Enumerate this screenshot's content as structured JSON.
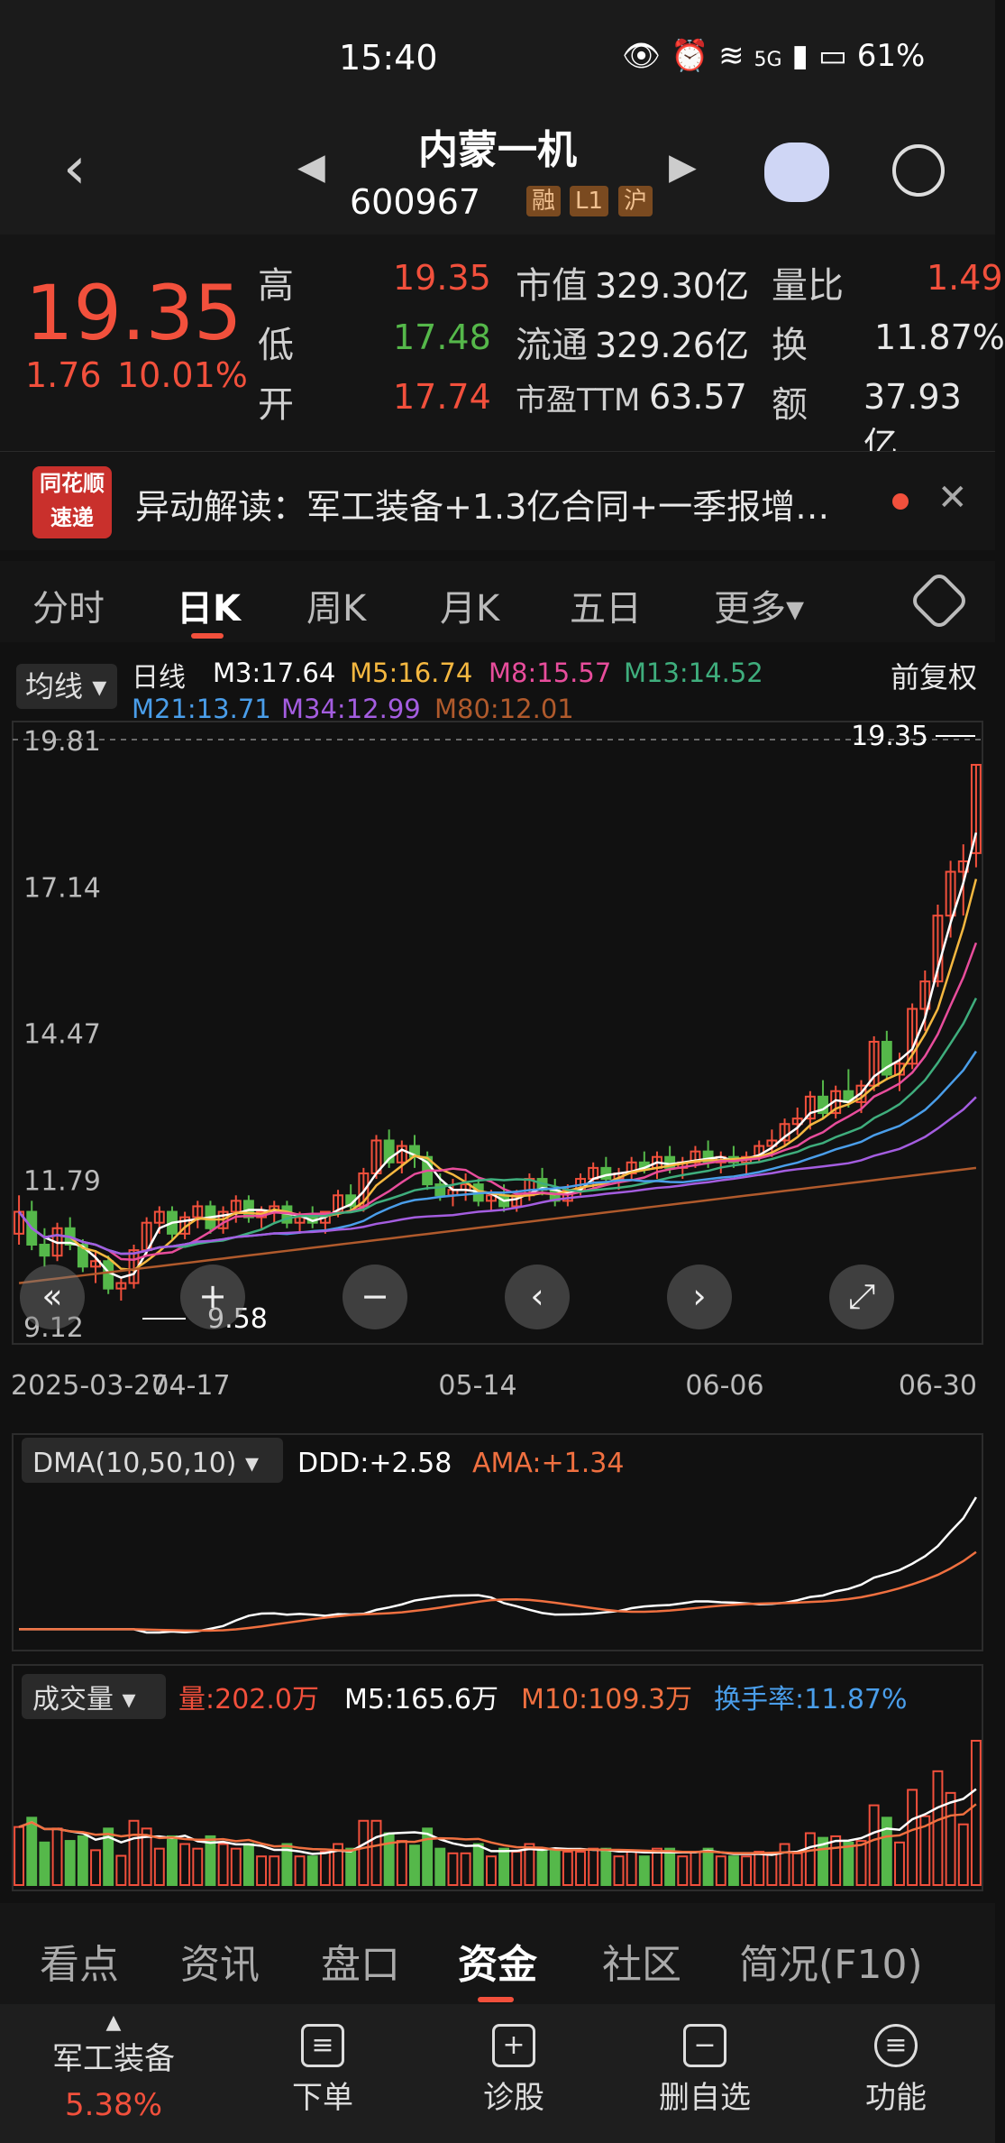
{
  "status": {
    "time": "15:40",
    "battery": "61%",
    "network": "5G"
  },
  "header": {
    "title": "内蒙一机",
    "code": "600967",
    "tags": [
      "融",
      "L1",
      "沪"
    ]
  },
  "quote": {
    "price": "19.35",
    "change": "1.76",
    "change_pct": "10.01%",
    "high_label": "高",
    "high": "19.35",
    "low_label": "低",
    "low": "17.48",
    "open_label": "开",
    "open": "17.74",
    "mktcap_label": "市值",
    "mktcap": "329.30亿",
    "float_label": "流通",
    "float": "329.26亿",
    "pe_label": "市盈TTM",
    "pe": "63.57",
    "volratio_label": "量比",
    "volratio": "1.49",
    "turnover_label": "换",
    "turnover": "11.87%",
    "amount_label": "额",
    "amount": "37.93亿"
  },
  "news": {
    "logo_line1": "同花顺",
    "logo_line2": "速递",
    "text": "异动解读：军工装备+1.3亿合同+一季报增…"
  },
  "ktabs": [
    "分时",
    "日K",
    "周K",
    "月K",
    "五日",
    "更多▾"
  ],
  "ma_panel": {
    "selector": "均线",
    "period": "日线",
    "adjust": "前复权",
    "ma": [
      {
        "label": "M3:17.64",
        "color": "#ffffff"
      },
      {
        "label": "M5:16.74",
        "color": "#f5b840"
      },
      {
        "label": "M8:15.57",
        "color": "#e84d9c"
      },
      {
        "label": "M13:14.52",
        "color": "#3fae7d"
      },
      {
        "label": "M21:13.71",
        "color": "#4a9eea"
      },
      {
        "label": "M34:12.99",
        "color": "#a45de0"
      },
      {
        "label": "M80:12.01",
        "color": "#b05a2c"
      }
    ]
  },
  "chart_data": [
    {
      "type": "candlestick",
      "title": "日线",
      "y_ticks": [
        19.81,
        17.14,
        14.47,
        11.79,
        9.12
      ],
      "ylim": [
        9.12,
        19.81
      ],
      "x_ticks": [
        "2025-03-27",
        "04-17",
        "05-14",
        "06-06",
        "06-30"
      ],
      "max_label": "19.35",
      "min_label": "9.58",
      "ohlc": [
        [
          10.8,
          11.5,
          10.6,
          11.2
        ],
        [
          11.2,
          11.4,
          10.5,
          10.6
        ],
        [
          10.6,
          10.9,
          10.2,
          10.4
        ],
        [
          10.4,
          11.0,
          10.3,
          10.9
        ],
        [
          10.9,
          11.1,
          10.5,
          10.6
        ],
        [
          10.6,
          10.7,
          10.1,
          10.2
        ],
        [
          10.2,
          10.5,
          9.9,
          10.3
        ],
        [
          10.3,
          10.4,
          9.7,
          9.8
        ],
        [
          9.8,
          10.0,
          9.58,
          9.9
        ],
        [
          9.9,
          10.6,
          9.8,
          10.5
        ],
        [
          10.5,
          11.1,
          10.4,
          11.0
        ],
        [
          11.0,
          11.3,
          10.8,
          11.2
        ],
        [
          11.2,
          11.3,
          10.7,
          10.8
        ],
        [
          10.8,
          11.2,
          10.7,
          11.1
        ],
        [
          11.1,
          11.4,
          10.9,
          11.3
        ],
        [
          11.3,
          11.4,
          10.8,
          10.9
        ],
        [
          10.9,
          11.3,
          10.8,
          11.2
        ],
        [
          11.2,
          11.5,
          11.0,
          11.4
        ],
        [
          11.4,
          11.5,
          11.0,
          11.1
        ],
        [
          11.1,
          11.3,
          10.9,
          11.2
        ],
        [
          11.2,
          11.4,
          11.0,
          11.3
        ],
        [
          11.3,
          11.4,
          10.9,
          11.0
        ],
        [
          11.0,
          11.2,
          10.8,
          11.1
        ],
        [
          11.1,
          11.3,
          10.9,
          11.0
        ],
        [
          11.0,
          11.2,
          10.8,
          11.2
        ],
        [
          11.2,
          11.6,
          11.1,
          11.5
        ],
        [
          11.5,
          11.7,
          11.2,
          11.3
        ],
        [
          11.3,
          12.0,
          11.2,
          11.9
        ],
        [
          11.9,
          12.6,
          11.8,
          12.5
        ],
        [
          12.5,
          12.7,
          12.0,
          12.1
        ],
        [
          12.1,
          12.5,
          11.9,
          12.4
        ],
        [
          12.4,
          12.6,
          12.0,
          12.2
        ],
        [
          12.2,
          12.3,
          11.6,
          11.7
        ],
        [
          11.7,
          11.9,
          11.4,
          11.5
        ],
        [
          11.5,
          11.8,
          11.3,
          11.6
        ],
        [
          11.6,
          11.9,
          11.4,
          11.7
        ],
        [
          11.7,
          11.8,
          11.3,
          11.4
        ],
        [
          11.4,
          11.6,
          11.2,
          11.5
        ],
        [
          11.5,
          11.7,
          11.2,
          11.3
        ],
        [
          11.3,
          11.6,
          11.2,
          11.5
        ],
        [
          11.5,
          11.9,
          11.4,
          11.8
        ],
        [
          11.8,
          12.0,
          11.5,
          11.6
        ],
        [
          11.6,
          11.8,
          11.3,
          11.4
        ],
        [
          11.4,
          11.7,
          11.3,
          11.6
        ],
        [
          11.6,
          11.9,
          11.5,
          11.8
        ],
        [
          11.8,
          12.1,
          11.6,
          12.0
        ],
        [
          12.0,
          12.2,
          11.7,
          11.8
        ],
        [
          11.8,
          12.0,
          11.6,
          11.9
        ],
        [
          11.9,
          12.2,
          11.8,
          12.1
        ],
        [
          12.1,
          12.3,
          11.9,
          12.0
        ],
        [
          12.0,
          12.3,
          11.8,
          12.2
        ],
        [
          12.2,
          12.4,
          11.9,
          12.0
        ],
        [
          12.0,
          12.2,
          11.8,
          12.1
        ],
        [
          12.1,
          12.4,
          12.0,
          12.3
        ],
        [
          12.3,
          12.5,
          12.0,
          12.1
        ],
        [
          12.1,
          12.3,
          11.9,
          12.2
        ],
        [
          12.2,
          12.4,
          12.0,
          12.1
        ],
        [
          12.1,
          12.3,
          11.9,
          12.2
        ],
        [
          12.2,
          12.5,
          12.1,
          12.4
        ],
        [
          12.4,
          12.7,
          12.2,
          12.5
        ],
        [
          12.5,
          12.9,
          12.4,
          12.8
        ],
        [
          12.8,
          13.1,
          12.6,
          12.9
        ],
        [
          12.9,
          13.4,
          12.7,
          13.3
        ],
        [
          13.3,
          13.6,
          12.9,
          13.0
        ],
        [
          13.0,
          13.5,
          12.9,
          13.4
        ],
        [
          13.4,
          13.8,
          13.1,
          13.2
        ],
        [
          13.2,
          13.6,
          13.0,
          13.5
        ],
        [
          13.5,
          14.4,
          13.4,
          14.3
        ],
        [
          14.3,
          14.5,
          13.6,
          13.7
        ],
        [
          13.7,
          14.1,
          13.4,
          13.9
        ],
        [
          13.9,
          15.0,
          13.8,
          14.9
        ],
        [
          14.9,
          15.6,
          14.5,
          15.4
        ],
        [
          15.4,
          16.8,
          15.3,
          16.6
        ],
        [
          16.6,
          17.6,
          16.2,
          17.4
        ],
        [
          17.4,
          17.9,
          16.6,
          17.59
        ],
        [
          17.74,
          19.35,
          17.48,
          19.35
        ]
      ],
      "ma_labels": [
        "M3",
        "M5",
        "M8",
        "M13",
        "M21",
        "M34",
        "M80"
      ],
      "signals_visible": true
    },
    {
      "type": "line",
      "title": "DMA(10,50,10)",
      "series": [
        {
          "name": "DDD:+2.58",
          "color": "#ffffff"
        },
        {
          "name": "AMA:+1.34",
          "color": "#f07040"
        }
      ]
    },
    {
      "type": "bar",
      "title": "成交量",
      "series": [
        {
          "name": "量:202.0万",
          "color": "#f2503c"
        },
        {
          "name": "M5:165.6万",
          "color": "#ffffff"
        },
        {
          "name": "M10:109.3万",
          "color": "#f07040"
        },
        {
          "name": "换手率:11.87%",
          "color": "#4a9eea"
        }
      ]
    }
  ],
  "dma_panel": {
    "selector": "DMA(10,50,10)",
    "ddd": "DDD:+2.58",
    "ama": "AMA:+1.34"
  },
  "vol_panel": {
    "selector": "成交量",
    "vol": "量:202.0万",
    "m5": "M5:165.6万",
    "m10": "M10:109.3万",
    "turnover": "换手率:11.87%"
  },
  "bottom_tabs": [
    "看点",
    "资讯",
    "盘口",
    "资金",
    "社区",
    "简况(F10)"
  ],
  "footer": {
    "sector": "军工装备",
    "sector_pct": "5.38%",
    "items": [
      "下单",
      "诊股",
      "删自选",
      "功能"
    ]
  }
}
